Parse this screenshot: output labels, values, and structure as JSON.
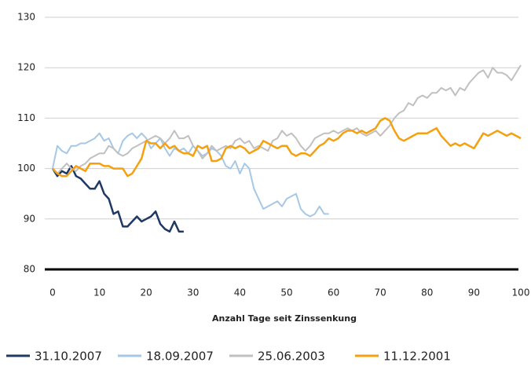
{
  "chart_data": {
    "type": "line",
    "x_label": "Anzahl Tage seit Zinssenkung",
    "x": [
      0,
      1,
      2,
      3,
      4,
      5,
      6,
      7,
      8,
      9,
      10,
      11,
      12,
      13,
      14,
      15,
      16,
      17,
      18,
      19,
      20,
      21,
      22,
      23,
      24,
      25,
      26,
      27,
      28,
      29,
      30,
      31,
      32,
      33,
      34,
      35,
      36,
      37,
      38,
      39,
      40,
      41,
      42,
      43,
      44,
      45,
      46,
      47,
      48,
      49,
      50,
      51,
      52,
      53,
      54,
      55,
      56,
      57,
      58,
      59,
      60,
      61,
      62,
      63,
      64,
      65,
      66,
      67,
      68,
      69,
      70,
      71,
      72,
      73,
      74,
      75,
      76,
      77,
      78,
      79,
      80,
      81,
      82,
      83,
      84,
      85,
      86,
      87,
      88,
      89,
      90,
      91,
      92,
      93,
      94,
      95,
      96,
      97,
      98,
      99,
      100
    ],
    "xlim": [
      0,
      100
    ],
    "xticks": [
      0,
      10,
      20,
      30,
      40,
      50,
      60,
      70,
      80,
      90,
      100
    ],
    "ylim": [
      80,
      130
    ],
    "yticks": [
      80,
      90,
      100,
      110,
      120,
      130
    ],
    "grid": true,
    "series": [
      {
        "name": "31.10.2007",
        "color": "#1f3864",
        "values": [
          100,
          98.5,
          99.5,
          99,
          100.5,
          98.5,
          98,
          97,
          96,
          96,
          97.5,
          95,
          94,
          91,
          91.5,
          88.5,
          88.5,
          89.5,
          90.5,
          89.5,
          90,
          90.5,
          91.5,
          89,
          88,
          87.5,
          89.5,
          87.5,
          87.5,
          null,
          null,
          null,
          null,
          null,
          null,
          null,
          null,
          null,
          null,
          null,
          null,
          null,
          null,
          null,
          null,
          null,
          null,
          null,
          null,
          null,
          null,
          null,
          null,
          null,
          null,
          null,
          null,
          null,
          null,
          null,
          null,
          null,
          null,
          null,
          null,
          null,
          null,
          null,
          null,
          null,
          null,
          null,
          null,
          null,
          null,
          null,
          null,
          null,
          null,
          null,
          null,
          null,
          null,
          null,
          null,
          null,
          null,
          null,
          null,
          null,
          null,
          null,
          null,
          null,
          null,
          null,
          null,
          null,
          null,
          null,
          null
        ]
      },
      {
        "name": "18.09.2007",
        "color": "#a6c8e6",
        "values": [
          100,
          104.5,
          103.5,
          103,
          104.5,
          104.5,
          105,
          105,
          105.5,
          106,
          107,
          105.5,
          106,
          104,
          103,
          105.5,
          106.5,
          107,
          106,
          107,
          106,
          104,
          105,
          106,
          104,
          102.5,
          104,
          103.5,
          104,
          103,
          104.5,
          103.5,
          102.5,
          103,
          104,
          103.5,
          102.5,
          100.5,
          100,
          101.5,
          99,
          101,
          100,
          96,
          94,
          92,
          92.5,
          93,
          93.5,
          92.5,
          94,
          94.5,
          95,
          92,
          91,
          90.5,
          91,
          92.5,
          91,
          91,
          null,
          null,
          null,
          null,
          null,
          null,
          null,
          null,
          null,
          null,
          null,
          null,
          null,
          null,
          null,
          null,
          null,
          null,
          null,
          null,
          null,
          null,
          null,
          null,
          null,
          null,
          null,
          null,
          null,
          null,
          null,
          null,
          null,
          null,
          null,
          null,
          null,
          null,
          null,
          null,
          null
        ]
      },
      {
        "name": "25.06.2003",
        "color": "#c0c0c0",
        "values": [
          100,
          99,
          100,
          101,
          100,
          99.5,
          100.5,
          101,
          102,
          102.5,
          103,
          103,
          104.5,
          104,
          103,
          102.5,
          103,
          104,
          104.5,
          105,
          105.5,
          106,
          106.5,
          106,
          105,
          106,
          107.5,
          106,
          106,
          106.5,
          104.5,
          103.5,
          102,
          103,
          104.5,
          103.5,
          104,
          104.5,
          104,
          105.5,
          106,
          105,
          105.5,
          104,
          104.5,
          104,
          103.5,
          105.5,
          106,
          107.5,
          106.5,
          107,
          106,
          104.5,
          103.5,
          104.5,
          106,
          106.5,
          107,
          107,
          107.5,
          107,
          107.5,
          108,
          107.5,
          108,
          107,
          106.5,
          107,
          107.5,
          106.5,
          107.5,
          108.5,
          110,
          111,
          111.5,
          113,
          112.5,
          114,
          114.5,
          114,
          115,
          115,
          116,
          115.5,
          116,
          114.5,
          116,
          115.5,
          117,
          118,
          119,
          119.5,
          118,
          120,
          119,
          119,
          118.5,
          117.5,
          119,
          120.5
        ]
      },
      {
        "name": "11.12.2001",
        "color": "#f5a00f",
        "values": [
          100,
          99,
          98.5,
          98.5,
          99.5,
          100.5,
          100,
          99.5,
          101,
          101,
          101,
          100.5,
          100.5,
          100,
          100,
          100,
          98.5,
          99,
          100.5,
          102,
          105.5,
          105,
          105,
          104,
          105,
          104,
          104.5,
          103.5,
          103,
          103,
          102.5,
          104.5,
          104,
          104.5,
          101.5,
          101.5,
          102,
          104,
          104.5,
          104,
          104.5,
          104,
          103,
          103.5,
          104,
          105.5,
          105,
          104.5,
          104,
          104.5,
          104.5,
          103,
          102.5,
          103,
          103,
          102.5,
          103.5,
          104.5,
          105,
          106,
          105.5,
          106,
          107,
          107.5,
          107.5,
          107,
          107.5,
          107,
          107.5,
          108,
          109.5,
          110,
          109.5,
          107.5,
          106,
          105.5,
          106,
          106.5,
          107,
          107,
          107,
          107.5,
          108,
          106.5,
          105.5,
          104.5,
          105,
          104.5,
          105,
          104.5,
          104,
          105.5,
          107,
          106.5,
          107,
          107.5,
          107,
          106.5,
          107,
          106.5,
          106
        ]
      }
    ]
  }
}
